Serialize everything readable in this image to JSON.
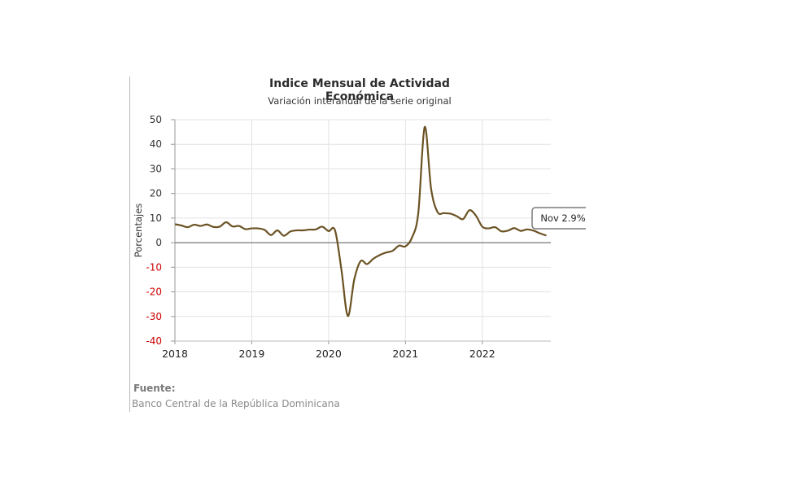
{
  "chart_data": {
    "type": "line",
    "title": "Indice Mensual de  Actividad Económica",
    "subtitle": "Variación interanual de la serie original",
    "ylabel": "Porcentajes",
    "xlabel": "",
    "ylim": [
      -40,
      50
    ],
    "yticks": [
      50,
      40,
      30,
      20,
      10,
      0,
      -10,
      -20,
      -30,
      -40
    ],
    "negative_tick_color": "#cc0000",
    "xticks": [
      "2018",
      "2019",
      "2020",
      "2021",
      "2022"
    ],
    "xlim": [
      "2018-01",
      "2022-11"
    ],
    "grid": true,
    "line_color": "#6b5223",
    "series": [
      {
        "x": [
          "2018-01",
          "2018-02",
          "2018-03",
          "2018-04",
          "2018-05",
          "2018-06",
          "2018-07",
          "2018-08",
          "2018-09",
          "2018-10",
          "2018-11",
          "2018-12",
          "2019-01",
          "2019-02",
          "2019-03",
          "2019-04",
          "2019-05",
          "2019-06",
          "2019-07",
          "2019-08",
          "2019-09",
          "2019-10",
          "2019-11",
          "2019-12",
          "2020-01",
          "2020-02",
          "2020-03",
          "2020-04",
          "2020-05",
          "2020-06",
          "2020-07",
          "2020-08",
          "2020-09",
          "2020-10",
          "2020-11",
          "2020-12",
          "2021-01",
          "2021-02",
          "2021-03",
          "2021-04",
          "2021-05",
          "2021-06",
          "2021-07",
          "2021-08",
          "2021-09",
          "2021-10",
          "2021-11",
          "2021-12",
          "2022-01",
          "2022-02",
          "2022-03",
          "2022-04",
          "2022-05",
          "2022-06",
          "2022-07",
          "2022-08",
          "2022-09",
          "2022-10",
          "2022-11"
        ],
        "values": [
          7.5,
          7.0,
          6.3,
          7.3,
          6.8,
          7.4,
          6.4,
          6.5,
          8.3,
          6.6,
          6.8,
          5.5,
          5.8,
          5.8,
          5.2,
          3.1,
          5.0,
          2.8,
          4.5,
          5.0,
          5.0,
          5.3,
          5.4,
          6.5,
          4.7,
          5.0,
          -11.0,
          -29.8,
          -15.0,
          -7.5,
          -8.7,
          -6.5,
          -5.0,
          -4.0,
          -3.3,
          -1.2,
          -1.5,
          2.0,
          12.0,
          47.0,
          22.0,
          12.5,
          12.0,
          11.8,
          10.8,
          9.6,
          13.2,
          11.0,
          6.5,
          5.8,
          6.3,
          4.6,
          4.9,
          5.9,
          4.8,
          5.4,
          4.9,
          3.8,
          2.9
        ]
      }
    ],
    "annotation": {
      "text": "Nov 2.9%",
      "x": "2022-11",
      "y": 2.9
    }
  },
  "source": {
    "label": "Fuente:",
    "text": "Banco Central de la República Dominicana"
  }
}
